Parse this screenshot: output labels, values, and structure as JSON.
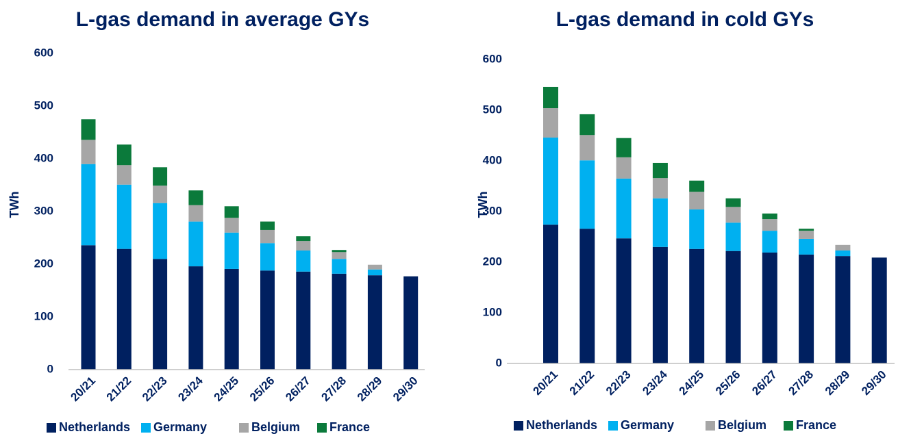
{
  "chart_data": [
    {
      "type": "bar",
      "stacked": true,
      "title": "L-gas demand in average GYs",
      "y_label": "TWh",
      "categories": [
        "20/21",
        "21/22",
        "22/23",
        "23/24",
        "24/25",
        "25/26",
        "26/27",
        "27/28",
        "28/29",
        "29/30"
      ],
      "series": [
        {
          "name": "Netherlands",
          "color": "#002060",
          "values": [
            236,
            229,
            210,
            196,
            191,
            188,
            186,
            182,
            179,
            177
          ]
        },
        {
          "name": "Germany",
          "color": "#00b0f0",
          "values": [
            154,
            122,
            106,
            85,
            69,
            52,
            40,
            28,
            11,
            0
          ]
        },
        {
          "name": "Belgium",
          "color": "#a6a6a6",
          "values": [
            46,
            37,
            33,
            31,
            28,
            25,
            18,
            13,
            9,
            0
          ]
        },
        {
          "name": "France",
          "color": "#0b7a3b",
          "values": [
            39,
            39,
            35,
            28,
            22,
            16,
            9,
            4,
            0,
            0
          ]
        }
      ],
      "ylim": [
        0,
        600
      ],
      "yticks": [
        0,
        100,
        200,
        300,
        400,
        500,
        600
      ],
      "grid": false,
      "legend": "bottom"
    },
    {
      "type": "bar",
      "stacked": true,
      "title": "L-gas demand in cold GYs",
      "y_label": "TWh",
      "categories": [
        "20/21",
        "21/22",
        "22/23",
        "23/24",
        "24/25",
        "25/26",
        "26/27",
        "27/28",
        "28/29",
        "29/30"
      ],
      "series": [
        {
          "name": "Netherlands",
          "color": "#002060",
          "values": [
            274,
            266,
            247,
            230,
            226,
            222,
            219,
            215,
            212,
            209
          ]
        },
        {
          "name": "Germany",
          "color": "#00b0f0",
          "values": [
            172,
            135,
            118,
            96,
            78,
            56,
            43,
            31,
            11,
            0
          ]
        },
        {
          "name": "Belgium",
          "color": "#a6a6a6",
          "values": [
            58,
            50,
            42,
            40,
            35,
            31,
            23,
            16,
            11,
            0
          ]
        },
        {
          "name": "France",
          "color": "#0b7a3b",
          "values": [
            42,
            41,
            38,
            30,
            22,
            17,
            11,
            4,
            0,
            0
          ]
        }
      ],
      "ylim": [
        0,
        600
      ],
      "yticks": [
        0,
        100,
        200,
        300,
        400,
        500,
        600
      ],
      "grid": false,
      "legend": "bottom"
    }
  ]
}
